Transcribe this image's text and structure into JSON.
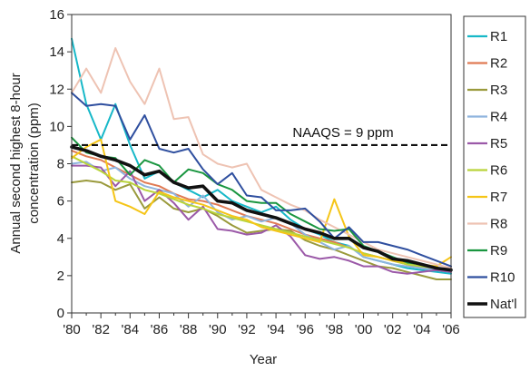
{
  "chart_data": {
    "type": "line",
    "ylabel_line1": "Annual second highest 8-hour",
    "ylabel_line2": "concentration (ppm)",
    "xlabel": "Year",
    "ylim": [
      0,
      16
    ],
    "xlim": [
      1980,
      2006
    ],
    "grid": false,
    "legend_position": "right",
    "y_ticks": [
      "0",
      "2",
      "4",
      "6",
      "8",
      "10",
      "12",
      "14",
      "16"
    ],
    "x_tick_labels": [
      "'80",
      "'82",
      "'84",
      "'86",
      "'88",
      "'90",
      "'92",
      "'94",
      "'96",
      "'98",
      "'00",
      "'02",
      "'04",
      "'06"
    ],
    "x": [
      1980,
      1981,
      1982,
      1983,
      1984,
      1985,
      1986,
      1987,
      1988,
      1989,
      1990,
      1991,
      1992,
      1993,
      1994,
      1995,
      1996,
      1997,
      1998,
      1999,
      2000,
      2001,
      2002,
      2003,
      2004,
      2005,
      2006
    ],
    "reference_line": {
      "label": "NAAQS = 9 ppm",
      "value": 9,
      "color": "#111111"
    },
    "series": [
      {
        "name": "R1",
        "color": "#17b8c8",
        "values": [
          14.7,
          11.2,
          9.3,
          11.2,
          9.0,
          7.2,
          7.6,
          7.0,
          6.6,
          6.2,
          6.6,
          6.0,
          5.7,
          5.4,
          5.7,
          5.0,
          4.5,
          4.2,
          3.8,
          3.6,
          3.0,
          2.8,
          2.6,
          2.4,
          2.3,
          2.2,
          2.1
        ]
      },
      {
        "name": "R2",
        "color": "#e07b54",
        "values": [
          8.7,
          8.4,
          8.2,
          7.8,
          7.4,
          7.0,
          6.8,
          6.4,
          6.1,
          6.0,
          5.8,
          5.5,
          5.2,
          5.0,
          4.8,
          4.5,
          4.2,
          4.0,
          3.8,
          3.5,
          3.2,
          3.0,
          2.8,
          2.6,
          2.4,
          2.3,
          2.2
        ]
      },
      {
        "name": "R3",
        "color": "#9a9a3c",
        "values": [
          7.0,
          7.1,
          7.0,
          6.6,
          6.9,
          5.6,
          6.2,
          5.6,
          5.4,
          5.6,
          5.2,
          4.7,
          4.3,
          4.4,
          4.5,
          4.4,
          3.9,
          3.6,
          3.4,
          3.1,
          2.8,
          2.5,
          2.4,
          2.2,
          2.0,
          1.8,
          1.8
        ]
      },
      {
        "name": "R4",
        "color": "#8fb4de",
        "values": [
          8.0,
          8.1,
          7.6,
          7.8,
          7.2,
          6.8,
          6.6,
          6.4,
          5.7,
          6.3,
          5.4,
          5.0,
          5.2,
          4.9,
          5.1,
          4.8,
          4.2,
          3.8,
          3.4,
          3.6,
          3.0,
          2.8,
          2.6,
          2.5,
          2.4,
          2.3,
          2.2
        ]
      },
      {
        "name": "R5",
        "color": "#9b59a8",
        "values": [
          7.9,
          7.9,
          7.8,
          6.8,
          7.6,
          6.0,
          6.6,
          5.9,
          5.0,
          5.7,
          4.5,
          4.4,
          4.2,
          4.3,
          4.7,
          4.1,
          3.1,
          2.9,
          3.0,
          2.8,
          2.5,
          2.5,
          2.2,
          2.1,
          2.2,
          2.3,
          2.2
        ]
      },
      {
        "name": "R6",
        "color": "#b9d43a",
        "values": [
          8.4,
          8.0,
          7.6,
          7.1,
          7.0,
          6.6,
          6.4,
          6.1,
          5.8,
          5.6,
          5.3,
          5.1,
          4.9,
          4.7,
          4.5,
          4.3,
          4.1,
          3.9,
          3.7,
          3.5,
          3.2,
          3.0,
          2.8,
          2.6,
          2.5,
          2.4,
          2.3
        ]
      },
      {
        "name": "R7",
        "color": "#f5c518",
        "values": [
          8.3,
          8.9,
          9.3,
          6.0,
          5.7,
          5.3,
          6.5,
          6.2,
          6.0,
          5.8,
          5.5,
          5.2,
          5.0,
          4.6,
          4.4,
          4.2,
          4.0,
          3.8,
          6.1,
          4.1,
          3.1,
          3.0,
          2.8,
          2.7,
          2.6,
          2.5,
          3.0
        ]
      },
      {
        "name": "R8",
        "color": "#eec3b3",
        "values": [
          11.8,
          13.1,
          11.8,
          14.2,
          12.4,
          11.2,
          13.1,
          10.4,
          10.5,
          8.5,
          8.0,
          7.8,
          8.0,
          6.6,
          6.2,
          5.8,
          5.5,
          5.0,
          4.6,
          4.2,
          3.8,
          3.4,
          3.2,
          3.0,
          2.8,
          2.6,
          2.4
        ]
      },
      {
        "name": "R9",
        "color": "#1a9640",
        "values": [
          9.4,
          8.6,
          8.4,
          8.3,
          7.4,
          8.2,
          7.9,
          7.0,
          7.7,
          7.5,
          6.9,
          6.6,
          6.0,
          5.9,
          5.9,
          5.3,
          4.9,
          4.5,
          4.4,
          4.5,
          3.6,
          3.3,
          3.0,
          2.7,
          2.6,
          2.4,
          2.3
        ]
      },
      {
        "name": "R10",
        "color": "#2f4f9f",
        "values": [
          11.8,
          11.1,
          11.2,
          11.1,
          9.3,
          10.6,
          8.8,
          8.6,
          8.8,
          7.7,
          6.9,
          7.5,
          6.3,
          6.2,
          5.5,
          5.5,
          5.6,
          4.9,
          4.0,
          4.6,
          3.8,
          3.8,
          3.6,
          3.4,
          3.1,
          2.8,
          2.5
        ]
      },
      {
        "name": "Nat'l",
        "color": "#111111",
        "values": [
          8.9,
          8.7,
          8.4,
          8.2,
          7.9,
          7.4,
          7.6,
          7.0,
          6.7,
          6.8,
          6.0,
          5.9,
          5.5,
          5.3,
          5.1,
          4.8,
          4.5,
          4.3,
          4.0,
          4.0,
          3.5,
          3.3,
          2.9,
          2.8,
          2.6,
          2.4,
          2.3
        ]
      }
    ]
  }
}
